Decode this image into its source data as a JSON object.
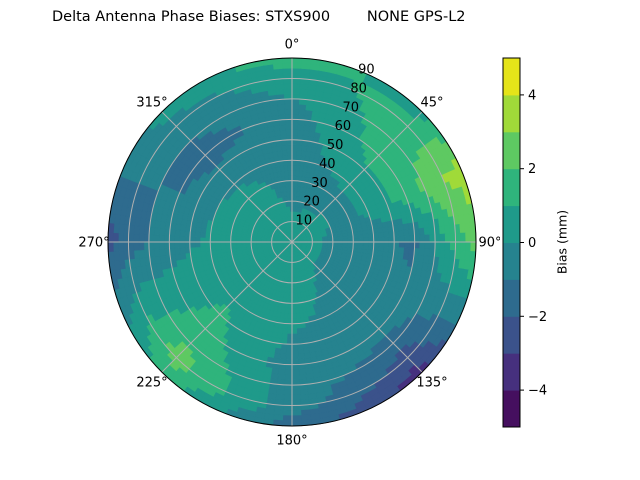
{
  "chart_data": {
    "type": "heatmap",
    "subtype": "polar filled contour",
    "title": "Delta Antenna Phase Biases: STXS900        NONE GPS-L2",
    "colorbar_label": "Bias (mm)",
    "colormap": "viridis",
    "levels": [
      -5,
      -4,
      -3,
      -2,
      -1,
      0,
      1,
      2,
      3,
      4,
      5
    ],
    "level_colors": [
      "#450f5f",
      "#46307e",
      "#3b528b",
      "#2e6b8e",
      "#26838f",
      "#1f9a8a",
      "#2fb47c",
      "#5ec962",
      "#a0da39",
      "#e5e419"
    ],
    "colorbar_ticks": [
      "−4",
      "−2",
      "0",
      "2",
      "4"
    ],
    "colorbar_tick_values": [
      -4,
      -2,
      0,
      2,
      4
    ],
    "angular_ticks": [
      "0°",
      "45°",
      "90°",
      "135°",
      "180°",
      "225°",
      "270°",
      "315°"
    ],
    "angular_tick_values": [
      0,
      45,
      90,
      135,
      180,
      225,
      270,
      315
    ],
    "radial_ticks": [
      "10",
      "20",
      "30",
      "40",
      "50",
      "60",
      "70",
      "80",
      "90"
    ],
    "radial_tick_values": [
      10,
      20,
      30,
      40,
      50,
      60,
      70,
      80,
      90
    ],
    "theta_zero": "top",
    "theta_direction": "clockwise",
    "rlim": [
      0,
      90
    ],
    "grid": true,
    "grid_azimuth_deg": [
      0,
      45,
      67.5,
      90,
      135,
      180,
      225,
      270,
      315
    ],
    "grid_zenith_deg": [
      0,
      30,
      60,
      80,
      90
    ],
    "bias_mm": [
      [
        0.5,
        -0.5,
        -0.5,
        0.5,
        1.5
      ],
      [
        0.5,
        -0.3,
        1.5,
        1.5,
        0.5
      ],
      [
        0.5,
        -0.3,
        1.5,
        3.0,
        3.5
      ],
      [
        0.5,
        -0.5,
        -1.2,
        1.5,
        2.5
      ],
      [
        0.5,
        -0.5,
        -0.5,
        -2.5,
        -3.5
      ],
      [
        0.5,
        0.5,
        -0.5,
        -0.5,
        -1.5
      ],
      [
        0.5,
        0.5,
        1.5,
        2.5,
        1.5
      ],
      [
        0.5,
        0.5,
        -0.5,
        -1.5,
        -2.5
      ],
      [
        0.5,
        0.5,
        -1.5,
        -0.5,
        0.5
      ]
    ]
  }
}
